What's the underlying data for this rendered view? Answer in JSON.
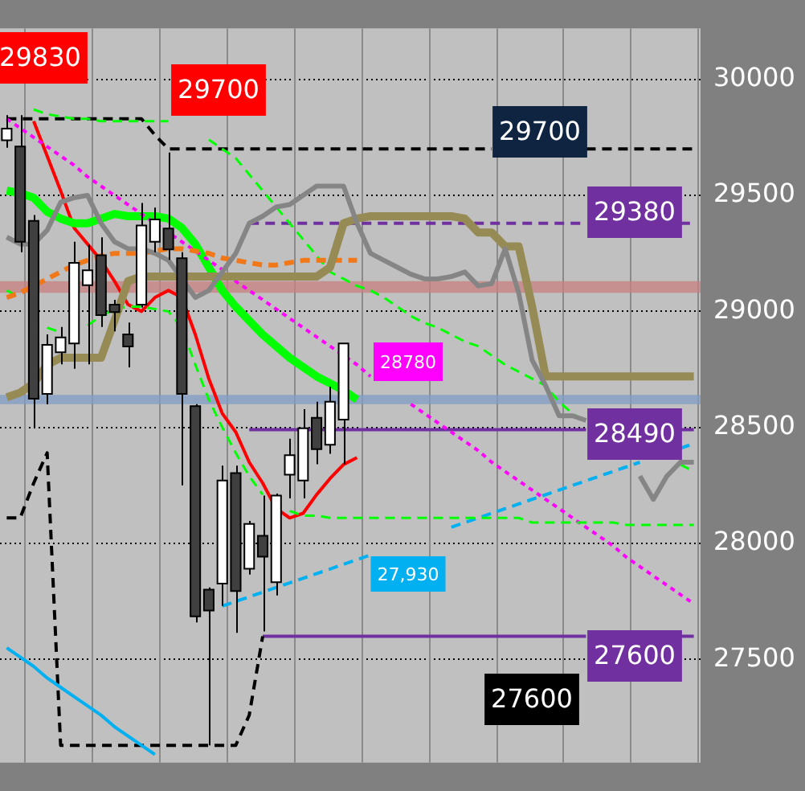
{
  "chart_data": {
    "type": "candlestick",
    "categories": [
      null,
      null,
      null,
      null,
      null,
      null,
      null,
      null,
      null,
      null,
      null,
      null,
      null,
      null,
      null,
      null,
      null,
      null,
      null,
      null,
      null,
      null,
      null,
      null,
      null,
      null,
      null,
      null,
      null,
      null,
      null,
      null,
      null,
      null,
      null,
      null,
      null,
      null,
      null,
      null,
      null,
      null,
      null,
      null,
      null,
      null,
      null,
      null,
      null,
      null,
      null,
      null
    ],
    "ohlc": [
      [
        29737,
        29846,
        29705,
        29788
      ],
      [
        29711,
        29846,
        29255,
        29300
      ],
      [
        29390,
        29415,
        28502,
        28624
      ],
      [
        28644,
        28901,
        28599,
        28856
      ],
      [
        28824,
        28933,
        28772,
        28888
      ],
      [
        28862,
        29300,
        28753,
        29209
      ],
      [
        29113,
        29287,
        28772,
        29177
      ],
      [
        29242,
        29319,
        28933,
        28984
      ],
      [
        29029,
        29050,
        28914,
        28997
      ],
      [
        28901,
        28952,
        28759,
        28849
      ],
      [
        29029,
        29467,
        29017,
        29370
      ],
      [
        29300,
        29447,
        29255,
        29396
      ],
      [
        29357,
        29685,
        29222,
        29267
      ],
      [
        29229,
        29255,
        28250,
        28644
      ],
      [
        28592,
        28600,
        27660,
        27686
      ],
      [
        27801,
        27810,
        27130,
        27711
      ],
      [
        27827,
        28335,
        27731,
        28271
      ],
      [
        28303,
        28335,
        27615,
        27795
      ],
      [
        27891,
        28097,
        27866,
        28084
      ],
      [
        28033,
        28206,
        27621,
        27943
      ],
      [
        27833,
        28215,
        27776,
        28206
      ],
      [
        28296,
        28451,
        28194,
        28380
      ],
      [
        28271,
        28579,
        28194,
        28496
      ],
      [
        28541,
        28611,
        28341,
        28406
      ],
      [
        28425,
        28676,
        28386,
        28611
      ],
      [
        28534,
        28862,
        28341,
        28862
      ],
      null,
      null,
      null,
      null,
      null,
      null,
      null,
      null,
      null,
      null,
      null,
      null,
      null,
      null,
      null,
      null,
      null,
      null,
      null,
      null,
      null,
      null,
      null,
      null,
      null,
      null
    ],
    "series": [
      {
        "type": "line",
        "color": "#858585",
        "line_style": "solid",
        "values": [
          29320,
          29290,
          29290,
          29350,
          29470,
          29490,
          29500,
          29380,
          29300,
          29270,
          29270,
          29250,
          29220,
          29140,
          29060,
          29090,
          29170,
          29250,
          29380,
          29410,
          29450,
          29460,
          29500,
          29540,
          29540,
          29540,
          29380,
          29250,
          29220,
          29190,
          29160,
          29140,
          29140,
          29150,
          29170,
          29110,
          29120,
          29270,
          29080,
          28790,
          28680,
          28550,
          28550,
          28530,
          null,
          null,
          null,
          28290,
          28190,
          28290,
          28350,
          28350
        ]
      },
      {
        "type": "line",
        "color": "#978b55",
        "line_style": "solid",
        "values": [
          28630,
          28650,
          28690,
          28770,
          28800,
          28800,
          28800,
          28800,
          28960,
          29130,
          29150,
          29150,
          29150,
          29150,
          29150,
          29150,
          29150,
          29150,
          29150,
          29150,
          29150,
          29150,
          29150,
          29150,
          29190,
          29380,
          29400,
          29410,
          29410,
          29410,
          29410,
          29410,
          29410,
          29410,
          29400,
          29340,
          29340,
          29280,
          29280,
          29020,
          28720,
          28720,
          28720,
          28720,
          28720,
          28720,
          28720,
          28720,
          28720,
          28720,
          28720,
          28720
        ]
      },
      {
        "type": "line",
        "color": "#f07818",
        "line_style": "dashed",
        "values": [
          29060,
          29080,
          29110,
          29140,
          29170,
          29200,
          29220,
          29240,
          29250,
          29250,
          29250,
          29260,
          29270,
          29270,
          29260,
          29250,
          29230,
          29220,
          29210,
          29200,
          29200,
          29210,
          29220,
          29220,
          29220,
          29220,
          29220,
          null,
          null,
          null,
          null,
          null,
          null,
          null,
          null,
          null,
          null,
          null,
          null,
          null,
          null,
          null,
          null,
          null,
          null,
          null,
          null,
          null,
          null,
          null,
          null,
          null
        ]
      },
      {
        "type": "line",
        "color": "#00ff00",
        "line_style": "dashed",
        "values": [
          null,
          null,
          29870,
          29850,
          29840,
          29830,
          29830,
          29820,
          29820,
          29820,
          29820,
          29820,
          29820,
          null,
          null,
          29740,
          29700,
          29660,
          29590,
          29520,
          29450,
          29380,
          29310,
          29240,
          29170,
          29140,
          29110,
          29090,
          29060,
          29020,
          28980,
          28950,
          28930,
          28900,
          28870,
          28850,
          28810,
          28770,
          28740,
          28710,
          28680,
          28610,
          28560,
          28520,
          null,
          null,
          null,
          null,
          null,
          null,
          28340,
          28310
        ]
      },
      {
        "type": "line",
        "color": "#00ff00",
        "line_style": "dashed",
        "values": [
          29090,
          29060,
          null,
          28930,
          28910,
          null,
          28940,
          28980,
          29010,
          29020,
          29020,
          29010,
          29000,
          28930,
          28770,
          28620,
          28500,
          28390,
          28290,
          28210,
          null,
          28140,
          28120,
          28120,
          28110,
          28110,
          28110,
          28110,
          28110,
          28110,
          28110,
          28110,
          28110,
          28110,
          28110,
          28110,
          28110,
          28110,
          28110,
          28090,
          28090,
          28090,
          28090,
          28090,
          28090,
          28090,
          28080,
          28080,
          28080,
          28080,
          28080,
          28080
        ]
      },
      {
        "type": "line",
        "color": "#ff00ff",
        "line_style": "dotted",
        "values": [
          29830,
          29790,
          29750,
          29710,
          29670,
          29630,
          29580,
          29540,
          29500,
          29460,
          29420,
          29380,
          29340,
          29300,
          29260,
          29220,
          29180,
          29130,
          29090,
          29050,
          29010,
          28970,
          28930,
          28890,
          28850,
          28810,
          28770,
          28720,
          null,
          null,
          28600,
          28560,
          28520,
          28480,
          28440,
          28400,
          28350,
          28310,
          28270,
          28230,
          28190,
          28150,
          28110,
          28070,
          28030,
          27990,
          27940,
          27900,
          27860,
          27820,
          27780,
          27740
        ]
      },
      {
        "type": "line",
        "color": "#00b0f0",
        "line_style": "dashed",
        "values": [
          null,
          null,
          null,
          null,
          null,
          null,
          null,
          null,
          null,
          null,
          null,
          null,
          null,
          null,
          null,
          null,
          27730,
          27750,
          27770,
          27790,
          27810,
          27830,
          27850,
          27870,
          27890,
          27910,
          27930,
          27950,
          null,
          null,
          null,
          null,
          null,
          28070,
          28090,
          28110,
          28130,
          28150,
          28170,
          28190,
          28210,
          28230,
          28250,
          28270,
          28290,
          28310,
          28330,
          28350,
          null,
          null,
          28410,
          28430
        ]
      },
      {
        "type": "line",
        "color": "#00b0f0",
        "line_style": "solid",
        "values": [
          27550,
          27510,
          27470,
          27420,
          27380,
          27340,
          27300,
          27260,
          27210,
          27170,
          27130,
          27090,
          null,
          null,
          null,
          null,
          null,
          null,
          null,
          null,
          null,
          null,
          null,
          null,
          null,
          null,
          null,
          null,
          null,
          null,
          null,
          null,
          null,
          null,
          null,
          null,
          null,
          null,
          null,
          null,
          null,
          null,
          null,
          null,
          null,
          null,
          null,
          null,
          null,
          null,
          null,
          null
        ]
      },
      {
        "type": "line",
        "color": "#000000",
        "line_style": "dashed",
        "values": [
          29830,
          29830,
          29830,
          29830,
          29830,
          29830,
          29830,
          29830,
          29830,
          29830,
          29830,
          29760,
          29700,
          29700,
          29700,
          29700,
          29700,
          29700,
          29700,
          29700,
          29700,
          29700,
          29700,
          29700,
          29700,
          29700,
          29700,
          29700,
          29700,
          29700,
          29700,
          29700,
          29700,
          29700,
          29700,
          29700,
          29700,
          null,
          null,
          null,
          null,
          null,
          null,
          29700,
          29700,
          29700,
          29700,
          29700,
          29700,
          29700,
          29700,
          29700
        ]
      },
      {
        "type": "line",
        "color": "#000000",
        "line_style": "dashed",
        "values": [
          28110,
          28110,
          28260,
          28390,
          27130,
          27130,
          27130,
          27130,
          27130,
          27130,
          27130,
          27130,
          27130,
          27130,
          27130,
          27130,
          27130,
          27130,
          27260,
          27600,
          null,
          null,
          null,
          null,
          null,
          null,
          null,
          null,
          null,
          null,
          null,
          null,
          null,
          null,
          null,
          null,
          null,
          null,
          null,
          null,
          null,
          null,
          null,
          null,
          null,
          null,
          null,
          null,
          null,
          null,
          null,
          null
        ]
      },
      {
        "type": "line",
        "color": "#7030a0",
        "line_style": "dashed",
        "values": [
          null,
          null,
          null,
          null,
          null,
          null,
          null,
          null,
          null,
          null,
          null,
          null,
          null,
          null,
          null,
          null,
          null,
          null,
          29380,
          29380,
          29380,
          29380,
          29380,
          29380,
          29380,
          29380,
          29380,
          29380,
          29380,
          29380,
          29380,
          29380,
          29380,
          29380,
          29380,
          29380,
          29380,
          29380,
          29380,
          29380,
          29380,
          29380,
          29380,
          29380,
          null,
          null,
          null,
          null,
          null,
          null,
          29380,
          29380
        ]
      },
      {
        "type": "line",
        "color": "#7030a0",
        "line_style": "solid",
        "values": [
          null,
          null,
          null,
          null,
          null,
          null,
          null,
          null,
          null,
          null,
          null,
          null,
          null,
          null,
          null,
          null,
          null,
          null,
          28490,
          28490,
          28490,
          28490,
          28490,
          28490,
          28490,
          28490,
          28490,
          28490,
          28490,
          28490,
          28490,
          28490,
          28490,
          28490,
          28490,
          28490,
          28490,
          28490,
          28490,
          28490,
          28490,
          28490,
          28490,
          28490,
          null,
          null,
          null,
          null,
          null,
          null,
          28490,
          28490
        ]
      },
      {
        "type": "line",
        "color": "#7030a0",
        "line_style": "solid",
        "values": [
          null,
          null,
          null,
          null,
          null,
          null,
          null,
          null,
          null,
          null,
          null,
          null,
          null,
          null,
          null,
          null,
          null,
          null,
          null,
          27600,
          27600,
          27600,
          27600,
          27600,
          27600,
          27600,
          27600,
          27600,
          27600,
          27600,
          27600,
          27600,
          27600,
          27600,
          27600,
          27600,
          27600,
          27600,
          27600,
          27600,
          27600,
          27600,
          27600,
          27600,
          null,
          null,
          null,
          null,
          null,
          null,
          27600,
          27600
        ]
      },
      {
        "type": "line",
        "color": "#00ff00",
        "line_style": "solid",
        "values": [
          29520,
          29510,
          29490,
          29430,
          29400,
          29380,
          29380,
          29400,
          29420,
          29410,
          29410,
          29410,
          29400,
          29360,
          29290,
          29190,
          29090,
          29020,
          28960,
          28900,
          28850,
          28800,
          28760,
          28720,
          28690,
          28660,
          28620,
          null,
          null,
          null,
          null,
          null,
          null,
          null,
          null,
          null,
          null,
          null,
          null,
          null,
          null,
          null,
          null,
          null,
          null,
          null,
          null,
          null,
          null,
          null,
          null,
          null
        ]
      },
      {
        "type": "line",
        "color": "#ff0000",
        "line_style": "solid",
        "values": [
          null,
          null,
          29820,
          29670,
          29520,
          29360,
          29290,
          29220,
          29130,
          29030,
          29000,
          29060,
          29090,
          29060,
          28900,
          28710,
          28560,
          28480,
          28350,
          28260,
          28150,
          28110,
          28130,
          28210,
          28280,
          28340,
          28370,
          null,
          null,
          null,
          null,
          null,
          null,
          null,
          null,
          null,
          null,
          null,
          null,
          null,
          null,
          null,
          null,
          null,
          null,
          null,
          null,
          null,
          null,
          null,
          null,
          null
        ]
      }
    ],
    "bands": [
      {
        "axis": "y",
        "from": 29080,
        "to": 29130,
        "color": "#c88080"
      },
      {
        "axis": "y",
        "from": 28600,
        "to": 28640,
        "color": "#7f9cc4"
      }
    ],
    "annotations": [
      "29830",
      "29700",
      "29700",
      "29380",
      "28780",
      "28490",
      "27,930",
      "27600",
      "27600"
    ],
    "ylim": [
      27055,
      30220
    ],
    "yticks": [
      27500,
      28000,
      28500,
      29000,
      29500,
      30000
    ],
    "grid": true,
    "legend": false,
    "tick_labels": "y"
  }
}
